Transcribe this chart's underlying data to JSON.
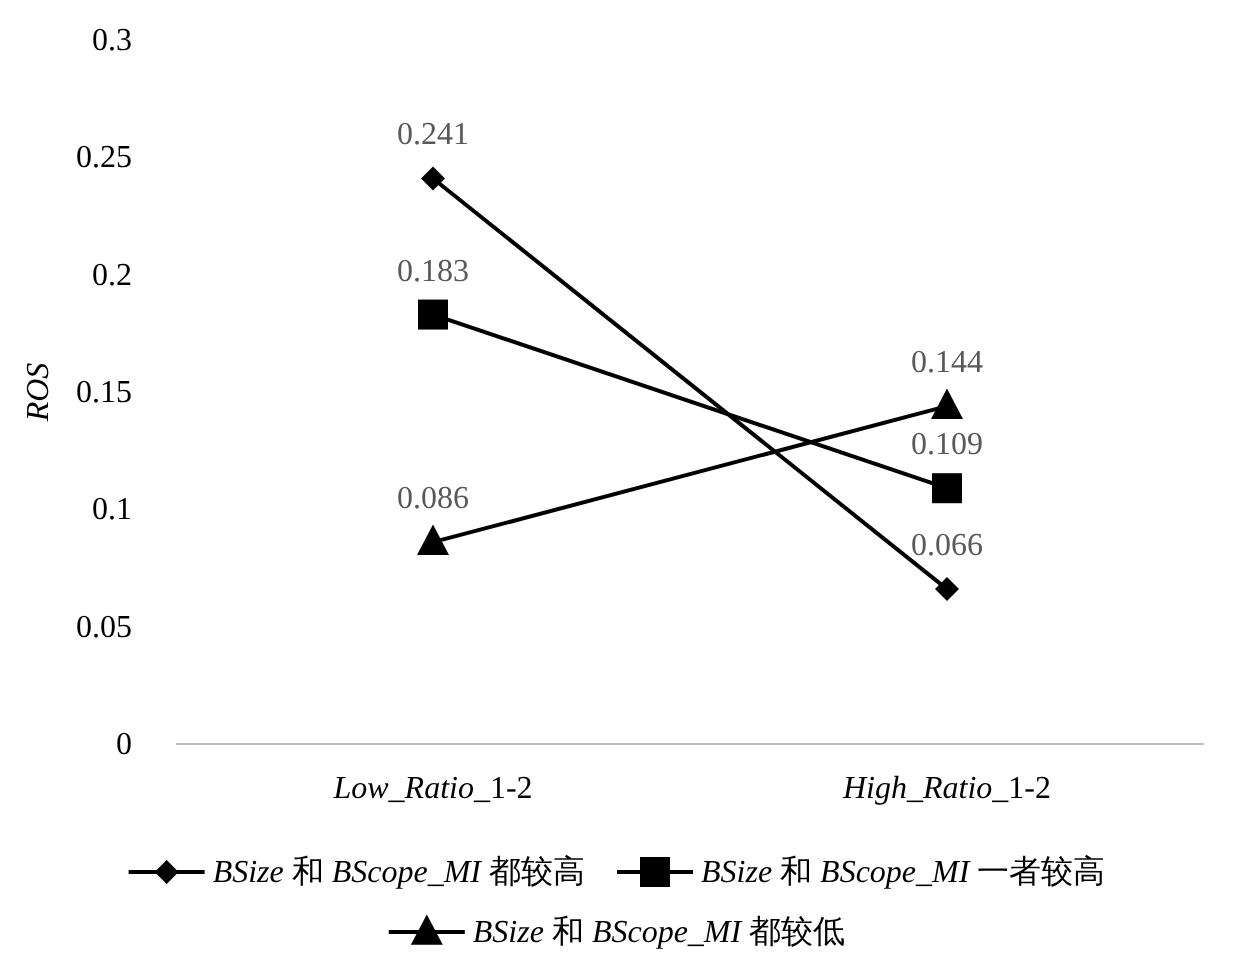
{
  "chart_data": {
    "type": "line",
    "ylabel": "ROS",
    "categories": [
      "Low_Ratio_1-2",
      "High_Ratio_1-2"
    ],
    "series": [
      {
        "name": "BSize 和 BScope_MI 都较高",
        "color": "#000000",
        "marker": "diamond",
        "values": [
          0.241,
          0.066
        ]
      },
      {
        "name": "BSize 和 BScope_MI 一者较高",
        "color": "#000000",
        "marker": "square",
        "values": [
          0.183,
          0.109
        ]
      },
      {
        "name": "BSize 和 BScope_MI 都较低",
        "color": "#000000",
        "marker": "triangle",
        "values": [
          0.086,
          0.144
        ]
      }
    ],
    "ylim": [
      0,
      0.3
    ],
    "yticks": [
      0,
      0.05,
      0.1,
      0.15,
      0.2,
      0.25,
      0.3
    ],
    "data_labels": true,
    "legend": "bottom",
    "grid": false
  }
}
